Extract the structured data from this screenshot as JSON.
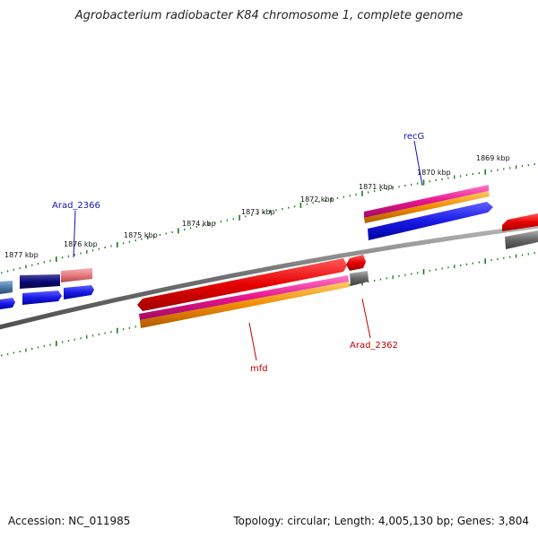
{
  "title": "Agrobacterium radiobacter K84 chromosome 1, complete genome",
  "ruler": {
    "top_labels": [
      "1877 kbp",
      "1876 kbp",
      "1875 kbp",
      "1874 kbp",
      "1873 kbp",
      "1872 kbp",
      "1871 kbp",
      "1870 kbp",
      "1869 kbp"
    ]
  },
  "genes": {
    "recG": "recG",
    "arad2366": "Arad_2366",
    "mfd": "mfd",
    "arad2362": "Arad_2362"
  },
  "colors": {
    "backbone": "#808080",
    "tick": "#1a7a1a",
    "cds_blue": "#1a1ae6",
    "gene_red": "#e60000",
    "rna_magenta": "#e6148c",
    "rna_orange": "#f08c00",
    "pseudo_gray": "#666666",
    "navy": "#0a0a78",
    "pink": "#e67a80",
    "steel": "#4d7aa8",
    "label_blue": "#1414b4",
    "label_red": "#c00000"
  },
  "footer": {
    "accession": "Accession: NC_011985",
    "summary": "Topology: circular; Length: 4,005,130 bp; Genes: 3,804"
  }
}
